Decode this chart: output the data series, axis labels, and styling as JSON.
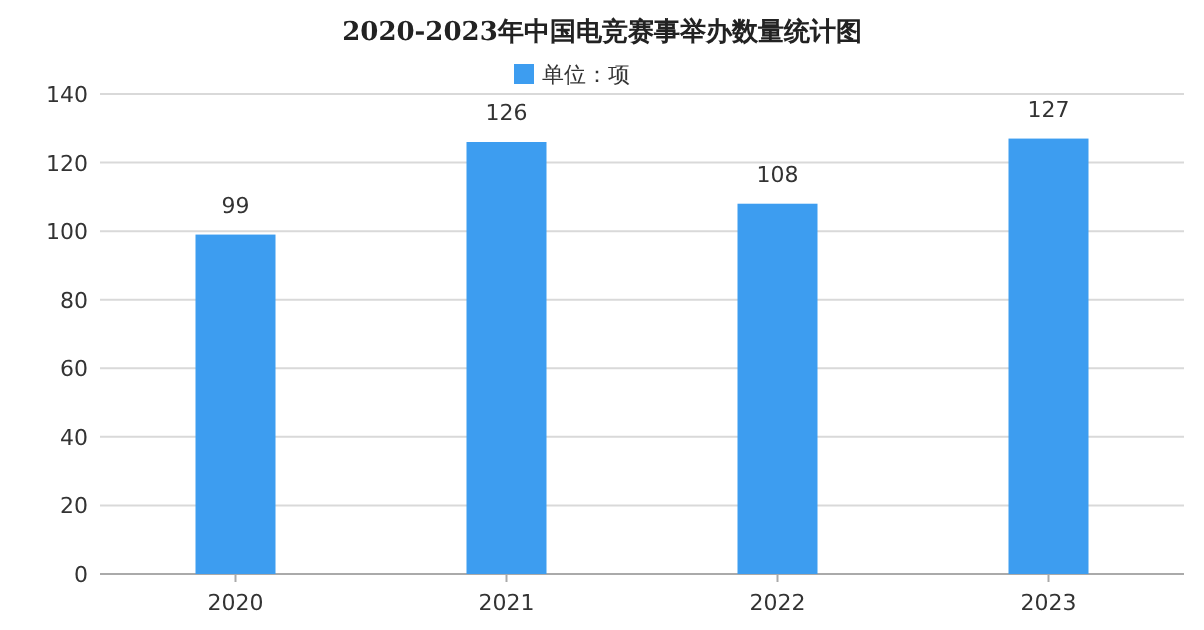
{
  "chart_data": {
    "type": "bar",
    "title": "2020-2023年中国电竞赛事举办数量统计图",
    "categories": [
      "2020",
      "2021",
      "2022",
      "2023"
    ],
    "series": [
      {
        "name": "单位：项",
        "color": "#3d9df0",
        "values": [
          99,
          126,
          108,
          127
        ]
      }
    ],
    "ylim": [
      0,
      140
    ],
    "yticks": [
      0,
      20,
      40,
      60,
      80,
      100,
      120,
      140
    ],
    "grid": "y",
    "legend": "top",
    "data_labels": true
  }
}
